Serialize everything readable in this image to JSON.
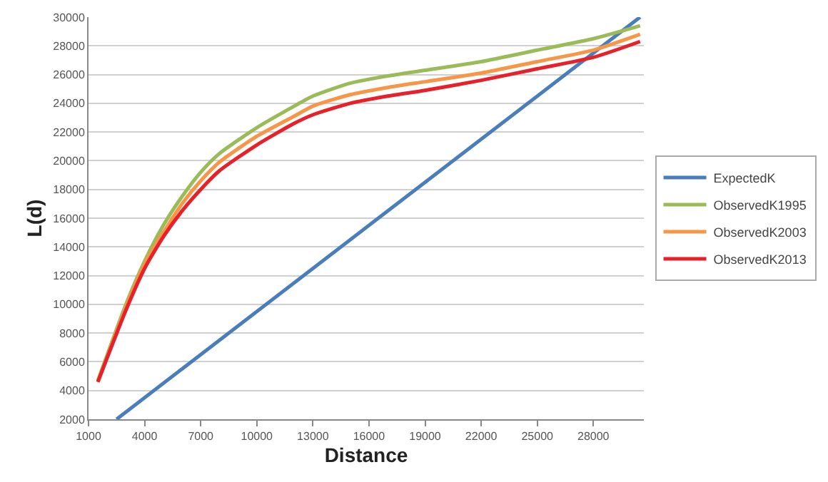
{
  "chart_data": {
    "type": "line",
    "xlabel": "Distance",
    "ylabel": "L(d)",
    "xlim": [
      1000,
      30700
    ],
    "xticks": [
      1000,
      4000,
      7000,
      10000,
      13000,
      16000,
      19000,
      22000,
      25000,
      28000
    ],
    "ylim": [
      2000,
      30000
    ],
    "yticks": [
      2000,
      4000,
      6000,
      8000,
      10000,
      12000,
      14000,
      16000,
      18000,
      20000,
      22000,
      24000,
      26000,
      28000,
      30000
    ],
    "grid": "y",
    "legend": "right",
    "marker": "none",
    "line_style": "solid",
    "series": [
      {
        "name": "ExpectedK",
        "color": "#4a7ebb",
        "x": [
          2500,
          30500
        ],
        "values": [
          2000,
          30000
        ]
      },
      {
        "name": "ObservedK1995",
        "color": "#9bbb59",
        "x": [
          1500,
          3000,
          4000,
          5000,
          6000,
          7000,
          8000,
          10000,
          12000,
          13000,
          15000,
          17000,
          19000,
          22000,
          25000,
          28000,
          30500
        ],
        "values": [
          4700,
          10000,
          13000,
          15500,
          17500,
          19200,
          20500,
          22300,
          23800,
          24500,
          25400,
          25900,
          26300,
          26900,
          27700,
          28500,
          29400
        ]
      },
      {
        "name": "ObservedK2003",
        "color": "#f79646",
        "x": [
          1500,
          3000,
          4000,
          5000,
          6000,
          7000,
          8000,
          10000,
          12000,
          13000,
          15000,
          17000,
          19000,
          22000,
          25000,
          28000,
          30500
        ],
        "values": [
          4600,
          9800,
          12800,
          15000,
          17000,
          18600,
          19900,
          21700,
          23100,
          23800,
          24600,
          25100,
          25500,
          26100,
          26900,
          27700,
          28800
        ]
      },
      {
        "name": "ObservedK2013",
        "color": "#e8202a",
        "x": [
          1500,
          3000,
          4000,
          5000,
          6000,
          7000,
          8000,
          10000,
          12000,
          13000,
          15000,
          17000,
          19000,
          22000,
          25000,
          28000,
          30500
        ],
        "values": [
          4600,
          9600,
          12500,
          14700,
          16500,
          18000,
          19300,
          21100,
          22600,
          23200,
          24000,
          24500,
          24900,
          25600,
          26400,
          27200,
          28300
        ]
      }
    ]
  }
}
